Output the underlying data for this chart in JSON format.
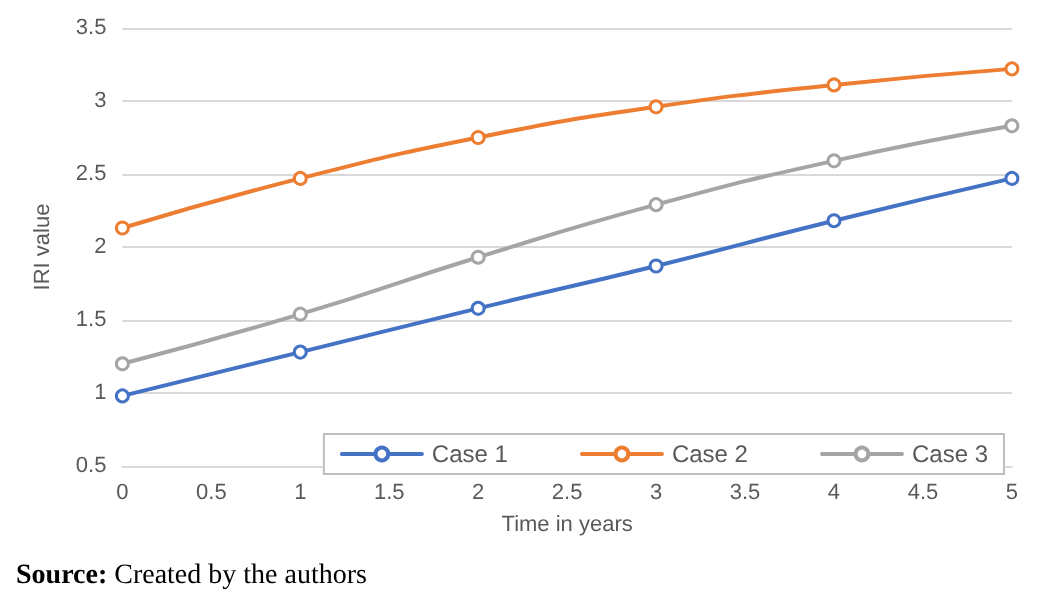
{
  "chart_data": {
    "type": "line",
    "xlabel": "Time in years",
    "ylabel": "IRI value",
    "x": [
      0,
      1,
      2,
      3,
      4,
      5
    ],
    "series": [
      {
        "name": "Case 1",
        "color": "#4472c4",
        "values": [
          0.98,
          1.28,
          1.58,
          1.87,
          2.18,
          2.47
        ]
      },
      {
        "name": "Case 2",
        "color": "#ed7d31",
        "values": [
          2.13,
          2.47,
          2.75,
          2.96,
          3.11,
          3.22
        ]
      },
      {
        "name": "Case 3",
        "color": "#a5a5a5",
        "values": [
          1.2,
          1.54,
          1.93,
          2.29,
          2.59,
          2.83
        ]
      }
    ],
    "xlim": [
      0,
      5
    ],
    "xticks": [
      0,
      0.5,
      1,
      1.5,
      2,
      2.5,
      3,
      3.5,
      4,
      4.5,
      5
    ],
    "ylim": [
      0.5,
      3.5
    ],
    "yticks": [
      0.5,
      1,
      1.5,
      2,
      2.5,
      3,
      3.5
    ],
    "grid": "y",
    "legend": "bottom right",
    "marker": "circle",
    "line_style": "solid",
    "annotations": [
      "Source: Created by the authors"
    ]
  }
}
